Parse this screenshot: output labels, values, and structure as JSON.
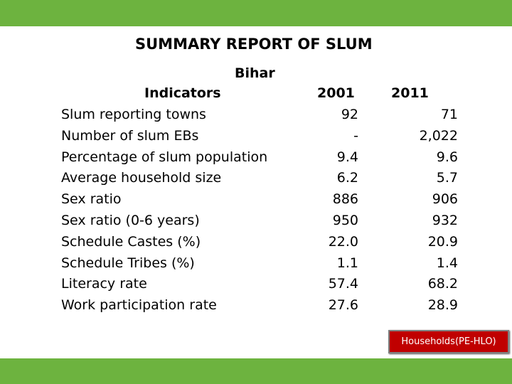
{
  "title": "SUMMARY REPORT OF SLUM",
  "region": "Bihar",
  "columns": {
    "indicators": "Indicators",
    "year1": "2001",
    "year2": "2011"
  },
  "rows": [
    {
      "label": "Slum reporting towns",
      "v2001": "92",
      "v2011": "71"
    },
    {
      "label": "Number of slum EBs",
      "v2001": "-",
      "v2011": "2,022"
    },
    {
      "label": "Percentage of slum population",
      "v2001": "9.4",
      "v2011": "9.6"
    },
    {
      "label": "Average household size",
      "v2001": "6.2",
      "v2011": "5.7"
    },
    {
      "label": "Sex ratio",
      "v2001": "886",
      "v2011": "906"
    },
    {
      "label": "Sex ratio (0-6 years)",
      "v2001": "950",
      "v2011": "932"
    },
    {
      "label": "Schedule Castes (%)",
      "v2001": "22.0",
      "v2011": "20.9"
    },
    {
      "label": "Schedule Tribes (%)",
      "v2001": "1.1",
      "v2011": "1.4"
    },
    {
      "label": "Literacy rate",
      "v2001": "57.4",
      "v2011": "68.2"
    },
    {
      "label": "Work participation rate",
      "v2001": "27.6",
      "v2011": "28.9"
    }
  ],
  "button": {
    "label": "Households(PE-HLO)"
  },
  "colors": {
    "bar": "#6db33f",
    "button": "#c00000"
  }
}
